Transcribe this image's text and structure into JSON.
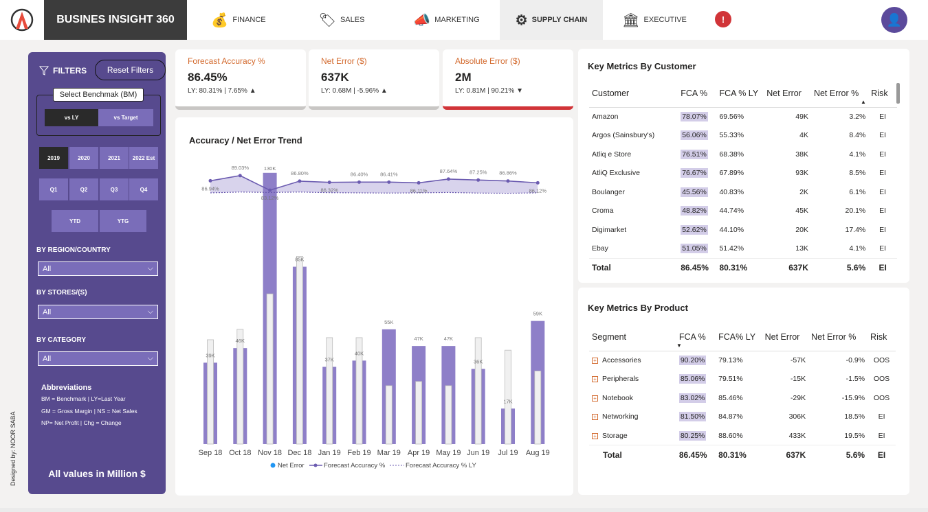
{
  "header": {
    "brand": "BUSINES INSIGHT 360",
    "nav": [
      {
        "label": "FINANCE",
        "icon": "finance-icon",
        "active": false
      },
      {
        "label": "SALES",
        "icon": "sales-icon",
        "active": false
      },
      {
        "label": "MARKETING",
        "icon": "marketing-icon",
        "active": false
      },
      {
        "label": "SUPPLY CHAIN",
        "icon": "supply-chain-icon",
        "active": true
      },
      {
        "label": "EXECUTIVE",
        "icon": "executive-icon",
        "active": false
      }
    ],
    "alert": "!"
  },
  "sidebar": {
    "filters_label": "FILTERS",
    "reset_label": "Reset Filters",
    "bm_title": "Select Benchmak (BM)",
    "bm_options": [
      "vs LY",
      "vs Target"
    ],
    "years": [
      "2019",
      "2020",
      "2021",
      "2022 Est"
    ],
    "quarters": [
      "Q1",
      "Q2",
      "Q3",
      "Q4"
    ],
    "ytd": [
      "YTD",
      "YTG"
    ],
    "region_label": "BY REGION/COUNTRY",
    "region_value": "All",
    "stores_label": "BY STORES/(S)",
    "stores_value": "All",
    "category_label": "BY CATEGORY",
    "category_value": "All",
    "abbr_title": "Abbreviations",
    "abbr_lines": [
      "BM = Benchmark | LY=Last Year",
      "GM = Gross Margin | NS = Net Sales",
      "NP= Net Profit | Chg = Change"
    ],
    "all_values": "All values in Million $",
    "designed": "Designed by: NOOR SABA"
  },
  "kpis": [
    {
      "title": "Forecast Accuracy %",
      "value": "86.45%",
      "sub": "LY: 80.31% | 7.65% ▲",
      "accent": "#c8c6c4"
    },
    {
      "title": "Net Error ($)",
      "value": "637K",
      "sub": "LY: 0.68M | -5.96% ▲",
      "accent": "#c8c6c4"
    },
    {
      "title": "Absolute Error ($)",
      "value": "2M",
      "sub": "LY: 0.81M | 90.21% ▼",
      "accent": "#d13438"
    }
  ],
  "chart_data": {
    "type": "bar",
    "title": "Accuracy / Net Error Trend",
    "categories": [
      "Sep 18",
      "Oct 18",
      "Nov 18",
      "Dec 18",
      "Jan 19",
      "Feb 19",
      "Mar 19",
      "Apr 19",
      "May 19",
      "Jun 19",
      "Jul 19",
      "Aug 19"
    ],
    "series": [
      {
        "name": "Net Error",
        "type": "bar",
        "values": [
          39,
          46,
          130,
          85,
          37,
          40,
          55,
          47,
          47,
          36,
          17,
          59
        ],
        "labels": [
          "39K",
          "46K",
          "130K",
          "85K",
          "37K",
          "40K",
          "55K",
          "47K",
          "47K",
          "36K",
          "17K",
          "59K"
        ]
      },
      {
        "name": "Net Error LY",
        "type": "bar",
        "values": [
          50,
          55,
          72,
          90,
          51,
          51,
          28,
          30,
          28,
          51,
          45,
          35
        ]
      },
      {
        "name": "Forecast Accuracy %",
        "type": "line",
        "values": [
          86.94,
          89.03,
          83.12,
          86.8,
          86.32,
          86.4,
          86.41,
          86.11,
          87.64,
          87.25,
          86.86,
          86.12
        ],
        "labels": [
          "86.94%",
          "89.03%",
          "83.12%",
          "86.80%",
          "86.32%",
          "86.40%",
          "86.41%",
          "86.11%",
          "87.64%",
          "87.25%",
          "86.86%",
          "86.12%"
        ]
      },
      {
        "name": "Forecast Accuracy % LY",
        "type": "line",
        "values": [
          80.5,
          80.9,
          80.7,
          80.9,
          80.6,
          80.5,
          80.4,
          80.5,
          80.7,
          80.4,
          80.3,
          80.5
        ]
      }
    ],
    "legend": [
      "Net Error",
      "Forecast Accuracy %",
      "Forecast Accuracy % LY"
    ],
    "colors": {
      "bar": "#8e7fc8",
      "bar_ly": "#f0f0f0",
      "line": "#6b5bb0",
      "band": "#c8c0e4"
    }
  },
  "customer_table": {
    "title": "Key Metrics By Customer",
    "headers": [
      "Customer",
      "FCA %",
      "FCA % LY",
      "Net Error",
      "Net Error %",
      "Risk"
    ],
    "rows": [
      [
        "Amazon",
        "78.07%",
        "69.56%",
        "49K",
        "3.2%",
        "EI"
      ],
      [
        "Argos (Sainsbury's)",
        "56.06%",
        "55.33%",
        "4K",
        "8.4%",
        "EI"
      ],
      [
        "Atliq e Store",
        "76.51%",
        "68.38%",
        "38K",
        "4.1%",
        "EI"
      ],
      [
        "AtliQ Exclusive",
        "76.67%",
        "67.89%",
        "93K",
        "8.5%",
        "EI"
      ],
      [
        "Boulanger",
        "45.56%",
        "40.83%",
        "2K",
        "6.1%",
        "EI"
      ],
      [
        "Croma",
        "48.82%",
        "44.74%",
        "45K",
        "20.1%",
        "EI"
      ],
      [
        "Digimarket",
        "52.62%",
        "44.10%",
        "20K",
        "17.4%",
        "EI"
      ],
      [
        "Ebay",
        "51.05%",
        "51.42%",
        "13K",
        "4.1%",
        "EI"
      ]
    ],
    "total": [
      "Total",
      "86.45%",
      "80.31%",
      "637K",
      "5.6%",
      "EI"
    ]
  },
  "product_table": {
    "title": "Key Metrics By Product",
    "headers": [
      "Segment",
      "FCA %",
      "FCA% LY",
      "Net Error",
      "Net Error %",
      "Risk"
    ],
    "rows": [
      [
        "Accessories",
        "90.20%",
        "79.13%",
        "-57K",
        "-0.9%",
        "OOS"
      ],
      [
        "Peripherals",
        "85.06%",
        "79.51%",
        "-15K",
        "-1.5%",
        "OOS"
      ],
      [
        "Notebook",
        "83.02%",
        "85.46%",
        "-29K",
        "-15.9%",
        "OOS"
      ],
      [
        "Networking",
        "81.50%",
        "84.87%",
        "306K",
        "18.5%",
        "EI"
      ],
      [
        "Storage",
        "80.25%",
        "88.60%",
        "433K",
        "19.5%",
        "EI"
      ]
    ],
    "total": [
      "Total",
      "86.45%",
      "80.31%",
      "637K",
      "5.6%",
      "EI"
    ]
  }
}
